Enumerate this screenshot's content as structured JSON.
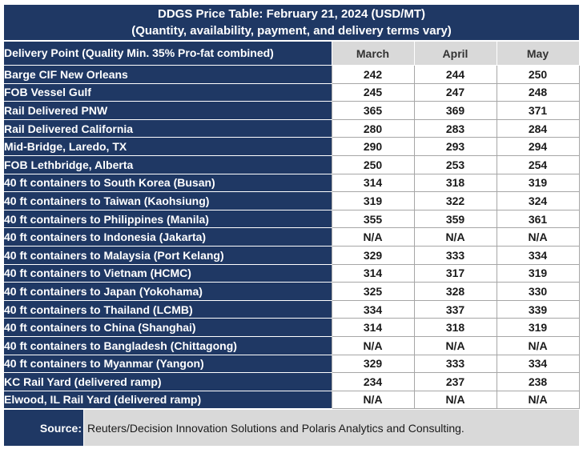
{
  "chart_data": {
    "type": "table",
    "title": "DDGS Price Table: February 21, 2024 (USD/MT)",
    "subtitle": "(Quantity, availability, payment, and delivery terms vary)",
    "row_header": "Delivery Point (Quality Min. 35% Pro-fat combined)",
    "columns": [
      "March",
      "April",
      "May"
    ],
    "rows": [
      {
        "label": "Barge CIF New Orleans",
        "values": [
          "242",
          "244",
          "250"
        ]
      },
      {
        "label": "FOB Vessel Gulf",
        "values": [
          "245",
          "247",
          "248"
        ]
      },
      {
        "label": "Rail Delivered PNW",
        "values": [
          "365",
          "369",
          "371"
        ]
      },
      {
        "label": "Rail Delivered California",
        "values": [
          "280",
          "283",
          "284"
        ]
      },
      {
        "label": "Mid-Bridge, Laredo, TX",
        "values": [
          "290",
          "293",
          "294"
        ]
      },
      {
        "label": "FOB Lethbridge, Alberta",
        "values": [
          "250",
          "253",
          "254"
        ]
      },
      {
        "label": "40 ft containers to South Korea (Busan)",
        "values": [
          "314",
          "318",
          "319"
        ]
      },
      {
        "label": "40 ft containers to Taiwan (Kaohsiung)",
        "values": [
          "319",
          "322",
          "324"
        ]
      },
      {
        "label": "40 ft containers to Philippines (Manila)",
        "values": [
          "355",
          "359",
          "361"
        ]
      },
      {
        "label": "40 ft containers to Indonesia (Jakarta)",
        "values": [
          "N/A",
          "N/A",
          "N/A"
        ]
      },
      {
        "label": "40 ft containers to Malaysia (Port Kelang)",
        "values": [
          "329",
          "333",
          "334"
        ]
      },
      {
        "label": "40 ft containers to Vietnam (HCMC)",
        "values": [
          "314",
          "317",
          "319"
        ]
      },
      {
        "label": "40 ft containers to Japan (Yokohama)",
        "values": [
          "325",
          "328",
          "330"
        ]
      },
      {
        "label": "40 ft containers to Thailand (LCMB)",
        "values": [
          "334",
          "337",
          "339"
        ]
      },
      {
        "label": "40 ft containers to China (Shanghai)",
        "values": [
          "314",
          "318",
          "319"
        ]
      },
      {
        "label": "40 ft containers to Bangladesh (Chittagong)",
        "values": [
          "N/A",
          "N/A",
          "N/A"
        ]
      },
      {
        "label": "40 ft containers to Myanmar (Yangon)",
        "values": [
          "329",
          "333",
          "334"
        ]
      },
      {
        "label": "KC Rail Yard (delivered ramp)",
        "values": [
          "234",
          "237",
          "238"
        ]
      },
      {
        "label": "Elwood, IL Rail Yard (delivered ramp)",
        "values": [
          "N/A",
          "N/A",
          "N/A"
        ]
      }
    ],
    "source_label": "Source:",
    "source_text": "Reuters/Decision Innovation Solutions and Polaris Analytics and Consulting."
  },
  "colors": {
    "header_navy": "#1f3864",
    "month_header_gray": "#d9d9d9",
    "source_bg_gray": "#d9d9d9",
    "cell_border": "#a6a6a6"
  }
}
